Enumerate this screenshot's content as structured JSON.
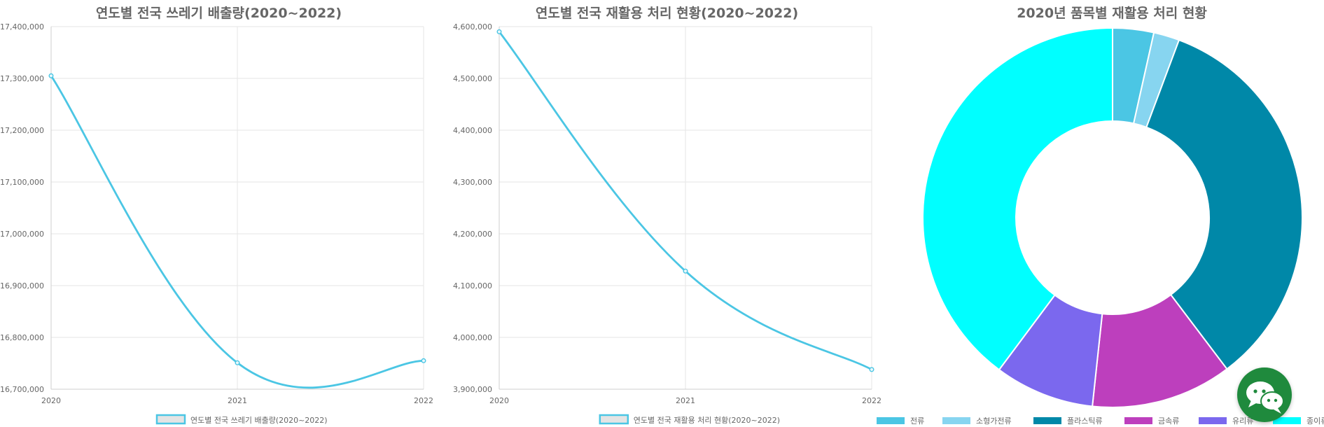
{
  "chart_data": [
    {
      "type": "line",
      "title": "연도별 전국 쓰레기 배출량(2020~2022)",
      "categories": [
        "2020",
        "2021",
        "2022"
      ],
      "series": [
        {
          "name": "연도별 전국 쓰레기 배출량(2020~2022)",
          "values": [
            17305000,
            16751000,
            16755000
          ]
        }
      ],
      "ylim": [
        16700000,
        17400000
      ],
      "yticks": [
        "17,400,000",
        "17,300,000",
        "17,200,000",
        "17,100,000",
        "17,000,000",
        "16,900,000",
        "16,800,000",
        "16,700,000"
      ],
      "grid": true,
      "legend": "bottom",
      "color": "#4bc6e4"
    },
    {
      "type": "line",
      "title": "연도별 전국 재활용 처리 현황(2020~2022)",
      "categories": [
        "2020",
        "2021",
        "2022"
      ],
      "series": [
        {
          "name": "연도별 전국 재활용 처리 현황(2020~2022)",
          "values": [
            4590000,
            4128000,
            3938000
          ]
        }
      ],
      "ylim": [
        3900000,
        4600000
      ],
      "yticks": [
        "4,600,000",
        "4,500,000",
        "4,400,000",
        "4,300,000",
        "4,200,000",
        "4,100,000",
        "4,000,000",
        "3,900,000"
      ],
      "grid": true,
      "legend": "bottom",
      "color": "#4bc6e4"
    },
    {
      "type": "pie",
      "title": "2020년 품목별 재활용 처리 현황",
      "categories": [
        "전류",
        "소형가전류",
        "플라스틱류",
        "금속류",
        "유리류",
        "종이류"
      ],
      "values": [
        3.5,
        2.2,
        34,
        12,
        8.5,
        39.8
      ],
      "colors": [
        "#4bc6e4",
        "#87d5f0",
        "#0088a8",
        "#bd3fbd",
        "#7b68ee",
        "#00ffff"
      ],
      "legend": "bottom"
    }
  ]
}
